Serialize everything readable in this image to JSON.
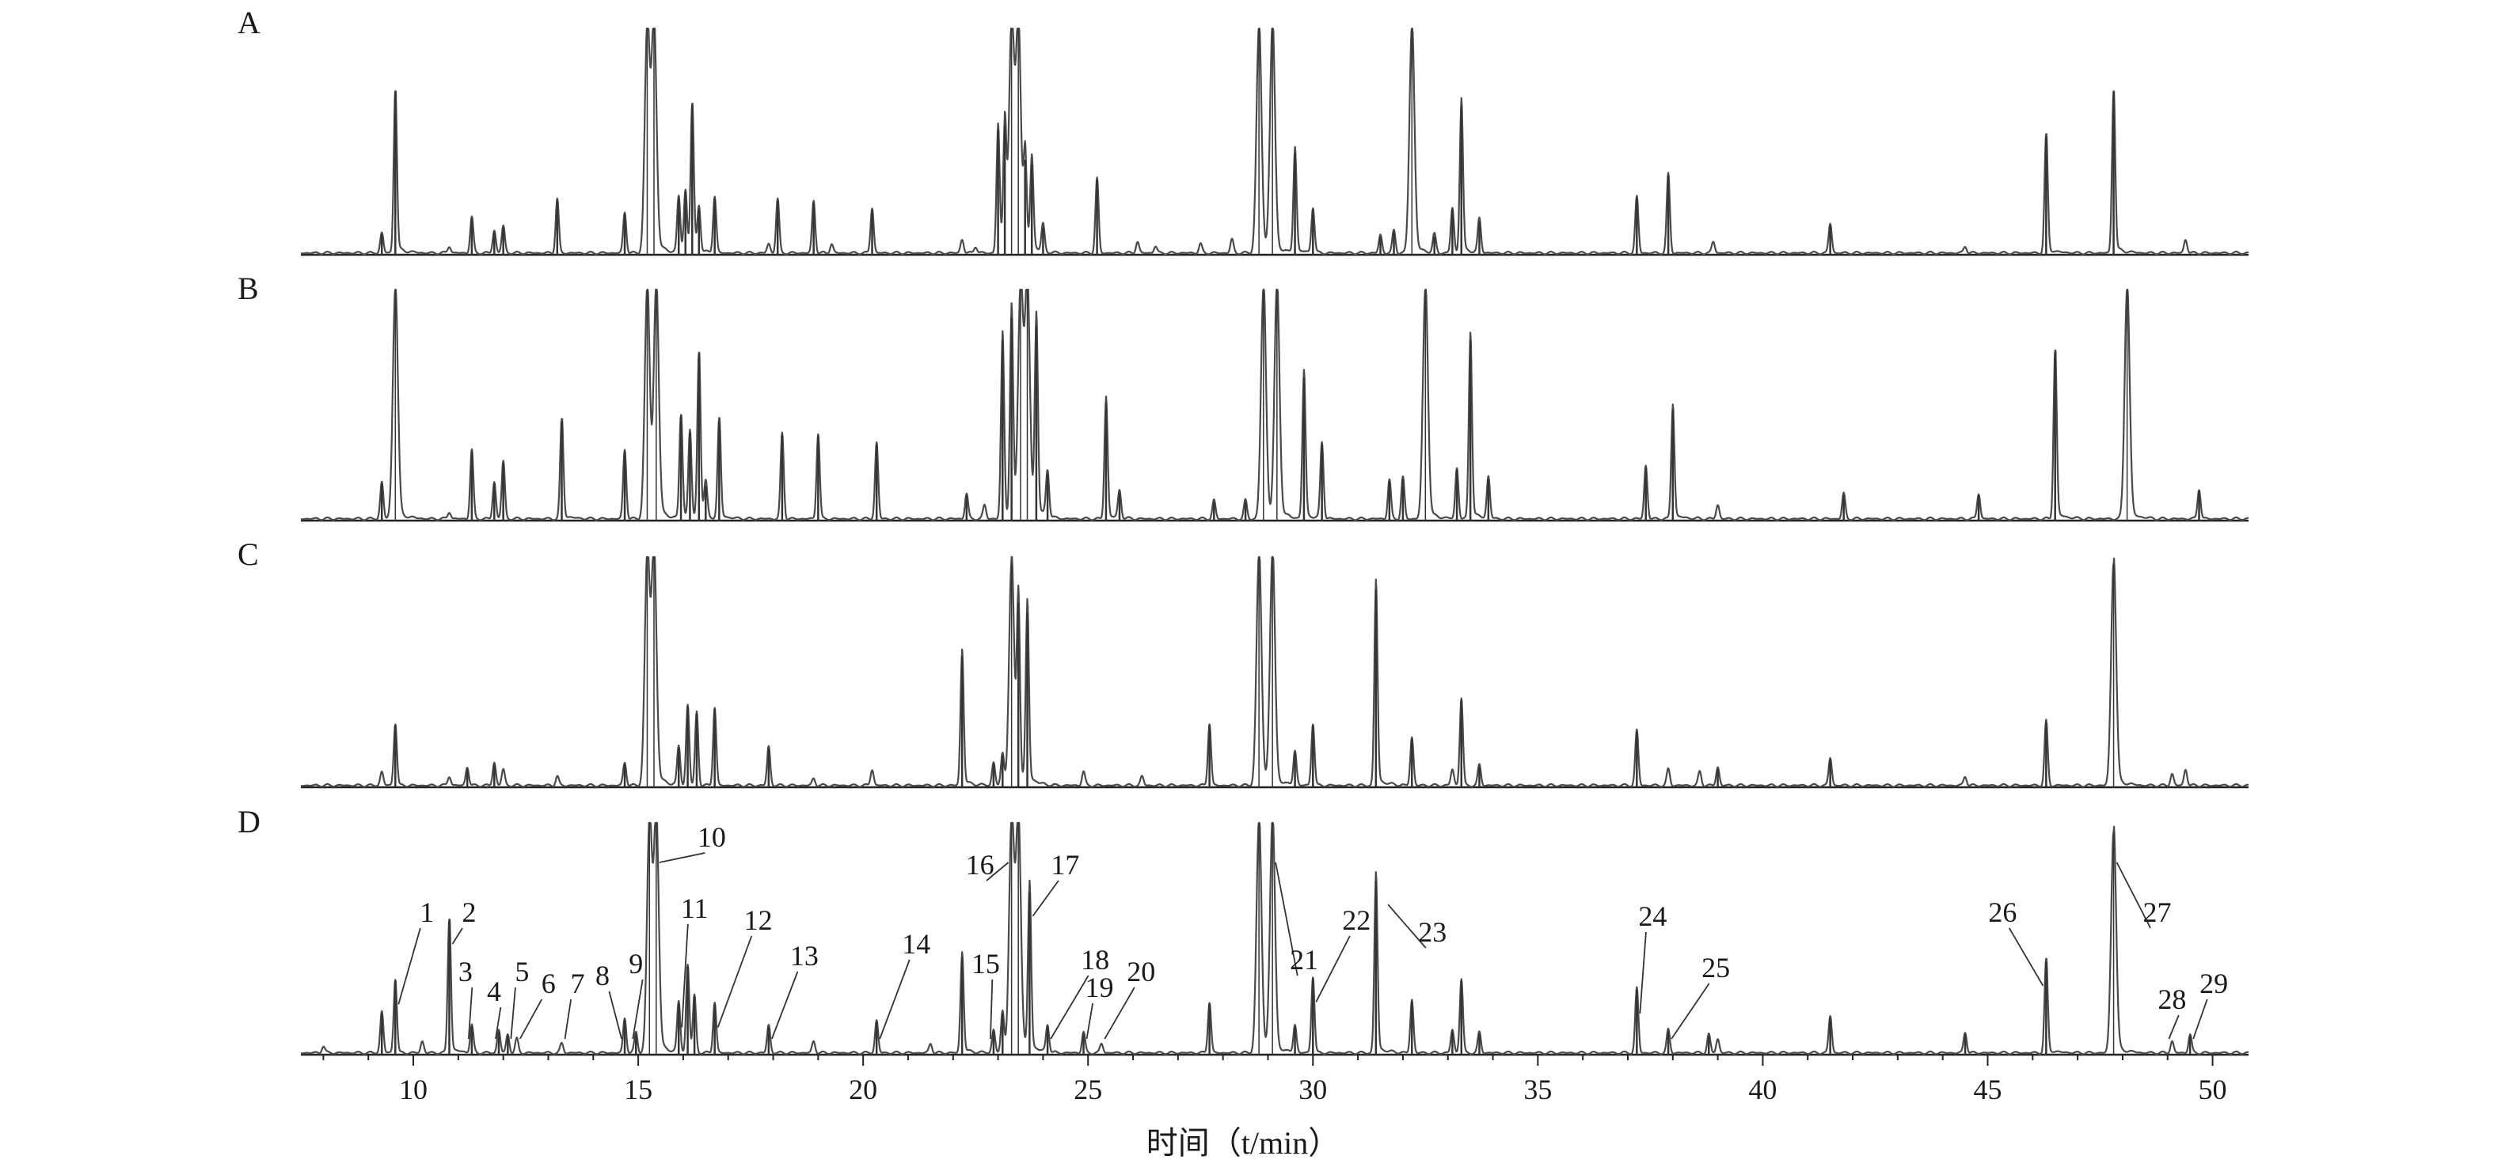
{
  "chart_data": {
    "type": "line",
    "xlabel": "时间（t/min）",
    "xlim": [
      7.5,
      50.8
    ],
    "xticks": [
      10,
      15,
      20,
      25,
      30,
      35,
      40,
      45,
      50
    ],
    "ylim": [
      0,
      100
    ],
    "grid": false,
    "series": [
      {
        "name": "A",
        "peaks": [
          [
            9.3,
            9
          ],
          [
            9.6,
            72
          ],
          [
            10.8,
            3
          ],
          [
            11.3,
            16
          ],
          [
            11.8,
            10
          ],
          [
            12.0,
            12
          ],
          [
            13.2,
            24
          ],
          [
            14.7,
            18
          ],
          [
            15.2,
            100
          ],
          [
            15.35,
            100
          ],
          [
            15.9,
            25
          ],
          [
            16.05,
            28
          ],
          [
            16.2,
            66
          ],
          [
            16.35,
            20
          ],
          [
            16.7,
            25
          ],
          [
            17.9,
            4
          ],
          [
            18.1,
            24
          ],
          [
            18.9,
            23
          ],
          [
            19.3,
            4
          ],
          [
            20.2,
            20
          ],
          [
            22.2,
            6
          ],
          [
            22.5,
            3
          ],
          [
            23.0,
            55
          ],
          [
            23.15,
            57
          ],
          [
            23.3,
            100
          ],
          [
            23.45,
            100
          ],
          [
            23.6,
            42
          ],
          [
            23.75,
            40
          ],
          [
            24.0,
            12
          ],
          [
            25.2,
            33
          ],
          [
            26.1,
            5
          ],
          [
            26.5,
            3
          ],
          [
            27.5,
            4
          ],
          [
            28.2,
            6
          ],
          [
            28.8,
            100
          ],
          [
            29.1,
            100
          ],
          [
            29.6,
            45
          ],
          [
            30.0,
            20
          ],
          [
            31.5,
            8
          ],
          [
            31.8,
            10
          ],
          [
            32.2,
            100
          ],
          [
            32.7,
            8
          ],
          [
            33.1,
            20
          ],
          [
            33.3,
            66
          ],
          [
            33.7,
            15
          ],
          [
            37.2,
            25
          ],
          [
            37.9,
            35
          ],
          [
            38.9,
            5
          ],
          [
            41.5,
            13
          ],
          [
            44.5,
            3
          ],
          [
            46.3,
            52
          ],
          [
            47.8,
            72
          ],
          [
            49.4,
            6
          ]
        ]
      },
      {
        "name": "B",
        "peaks": [
          [
            9.3,
            16
          ],
          [
            9.6,
            100
          ],
          [
            10.8,
            3
          ],
          [
            11.3,
            30
          ],
          [
            11.8,
            16
          ],
          [
            12.0,
            25
          ],
          [
            13.3,
            43
          ],
          [
            14.7,
            30
          ],
          [
            15.2,
            100
          ],
          [
            15.4,
            100
          ],
          [
            15.95,
            45
          ],
          [
            16.15,
            38
          ],
          [
            16.35,
            72
          ],
          [
            16.5,
            15
          ],
          [
            16.8,
            43
          ],
          [
            18.2,
            37
          ],
          [
            19.0,
            37
          ],
          [
            20.3,
            33
          ],
          [
            22.3,
            11
          ],
          [
            22.7,
            6
          ],
          [
            23.1,
            78
          ],
          [
            23.3,
            88
          ],
          [
            23.5,
            100
          ],
          [
            23.65,
            100
          ],
          [
            23.85,
            84
          ],
          [
            24.1,
            20
          ],
          [
            25.4,
            51
          ],
          [
            25.7,
            12
          ],
          [
            27.8,
            8
          ],
          [
            28.5,
            8
          ],
          [
            28.9,
            100
          ],
          [
            29.2,
            100
          ],
          [
            29.8,
            62
          ],
          [
            30.2,
            33
          ],
          [
            31.7,
            17
          ],
          [
            32.0,
            18
          ],
          [
            32.5,
            100
          ],
          [
            33.2,
            22
          ],
          [
            33.5,
            78
          ],
          [
            33.9,
            18
          ],
          [
            37.4,
            23
          ],
          [
            38.0,
            48
          ],
          [
            39.0,
            6
          ],
          [
            41.8,
            11
          ],
          [
            44.8,
            11
          ],
          [
            46.5,
            73
          ],
          [
            48.1,
            100
          ],
          [
            49.7,
            13
          ]
        ]
      },
      {
        "name": "C",
        "peaks": [
          [
            9.3,
            6
          ],
          [
            9.6,
            27
          ],
          [
            10.8,
            4
          ],
          [
            11.2,
            8
          ],
          [
            11.8,
            10
          ],
          [
            12.0,
            7
          ],
          [
            13.2,
            4
          ],
          [
            14.7,
            10
          ],
          [
            15.2,
            100
          ],
          [
            15.35,
            100
          ],
          [
            15.9,
            17
          ],
          [
            16.1,
            35
          ],
          [
            16.3,
            32
          ],
          [
            16.7,
            34
          ],
          [
            17.9,
            17
          ],
          [
            18.9,
            3
          ],
          [
            20.2,
            7
          ],
          [
            22.2,
            57
          ],
          [
            22.9,
            10
          ],
          [
            23.1,
            14
          ],
          [
            23.3,
            97
          ],
          [
            23.45,
            80
          ],
          [
            23.65,
            76
          ],
          [
            24.9,
            6
          ],
          [
            26.2,
            4
          ],
          [
            27.7,
            27
          ],
          [
            28.8,
            100
          ],
          [
            29.1,
            100
          ],
          [
            29.6,
            15
          ],
          [
            30.0,
            27
          ],
          [
            31.4,
            86
          ],
          [
            32.2,
            21
          ],
          [
            33.1,
            7
          ],
          [
            33.3,
            38
          ],
          [
            33.7,
            9
          ],
          [
            37.2,
            24
          ],
          [
            37.9,
            7
          ],
          [
            38.6,
            6
          ],
          [
            39.0,
            8
          ],
          [
            41.5,
            12
          ],
          [
            44.5,
            4
          ],
          [
            46.3,
            28
          ],
          [
            47.8,
            97
          ],
          [
            49.1,
            5
          ],
          [
            49.4,
            7
          ]
        ]
      },
      {
        "name": "D",
        "peaks": [
          [
            8.0,
            3
          ],
          [
            9.3,
            18
          ],
          [
            9.6,
            32
          ],
          [
            10.2,
            5
          ],
          [
            10.8,
            58
          ],
          [
            11.3,
            12
          ],
          [
            11.9,
            10
          ],
          [
            12.1,
            8
          ],
          [
            12.3,
            6
          ],
          [
            13.3,
            4
          ],
          [
            14.7,
            15
          ],
          [
            14.95,
            9
          ],
          [
            15.25,
            100
          ],
          [
            15.4,
            100
          ],
          [
            15.9,
            22
          ],
          [
            16.1,
            38
          ],
          [
            16.25,
            25
          ],
          [
            16.7,
            22
          ],
          [
            17.9,
            12
          ],
          [
            18.9,
            5
          ],
          [
            20.3,
            14
          ],
          [
            21.5,
            4
          ],
          [
            22.2,
            42
          ],
          [
            22.9,
            10
          ],
          [
            23.1,
            18
          ],
          [
            23.3,
            100
          ],
          [
            23.45,
            100
          ],
          [
            23.7,
            70
          ],
          [
            24.1,
            12
          ],
          [
            24.9,
            9
          ],
          [
            25.3,
            4
          ],
          [
            27.7,
            22
          ],
          [
            28.8,
            100
          ],
          [
            29.1,
            100
          ],
          [
            29.6,
            12
          ],
          [
            30.0,
            33
          ],
          [
            31.4,
            75
          ],
          [
            32.2,
            23
          ],
          [
            33.1,
            10
          ],
          [
            33.3,
            32
          ],
          [
            33.7,
            9
          ],
          [
            37.2,
            28
          ],
          [
            37.9,
            10
          ],
          [
            38.8,
            8
          ],
          [
            39.0,
            6
          ],
          [
            41.5,
            16
          ],
          [
            44.5,
            9
          ],
          [
            46.3,
            40
          ],
          [
            47.8,
            96
          ],
          [
            49.1,
            5
          ],
          [
            49.5,
            8
          ]
        ]
      }
    ],
    "annotations": [
      {
        "label": "1",
        "peak_x": 9.6
      },
      {
        "label": "2",
        "peak_x": 10.8
      },
      {
        "label": "3",
        "peak_x": 11.3
      },
      {
        "label": "4",
        "peak_x": 11.9
      },
      {
        "label": "5",
        "peak_x": 12.1
      },
      {
        "label": "6",
        "peak_x": 12.3
      },
      {
        "label": "7",
        "peak_x": 13.3
      },
      {
        "label": "8",
        "peak_x": 14.7
      },
      {
        "label": "9",
        "peak_x": 14.95
      },
      {
        "label": "10",
        "peak_x": 15.4
      },
      {
        "label": "11",
        "peak_x": 15.9
      },
      {
        "label": "12",
        "peak_x": 16.7
      },
      {
        "label": "13",
        "peak_x": 17.9
      },
      {
        "label": "14",
        "peak_x": 20.3
      },
      {
        "label": "15",
        "peak_x": 22.9
      },
      {
        "label": "16",
        "peak_x": 23.3
      },
      {
        "label": "17",
        "peak_x": 23.7
      },
      {
        "label": "18",
        "peak_x": 24.1
      },
      {
        "label": "19",
        "peak_x": 24.9
      },
      {
        "label": "20",
        "peak_x": 25.3
      },
      {
        "label": "21",
        "peak_x": 29.1
      },
      {
        "label": "22",
        "peak_x": 30.0
      },
      {
        "label": "23",
        "peak_x": 31.6
      },
      {
        "label": "24",
        "peak_x": 37.2
      },
      {
        "label": "25",
        "peak_x": 37.9
      },
      {
        "label": "26",
        "peak_x": 46.3
      },
      {
        "label": "27",
        "peak_x": 47.8
      },
      {
        "label": "28",
        "peak_x": 49.1
      },
      {
        "label": "29",
        "peak_x": 49.5
      }
    ]
  }
}
